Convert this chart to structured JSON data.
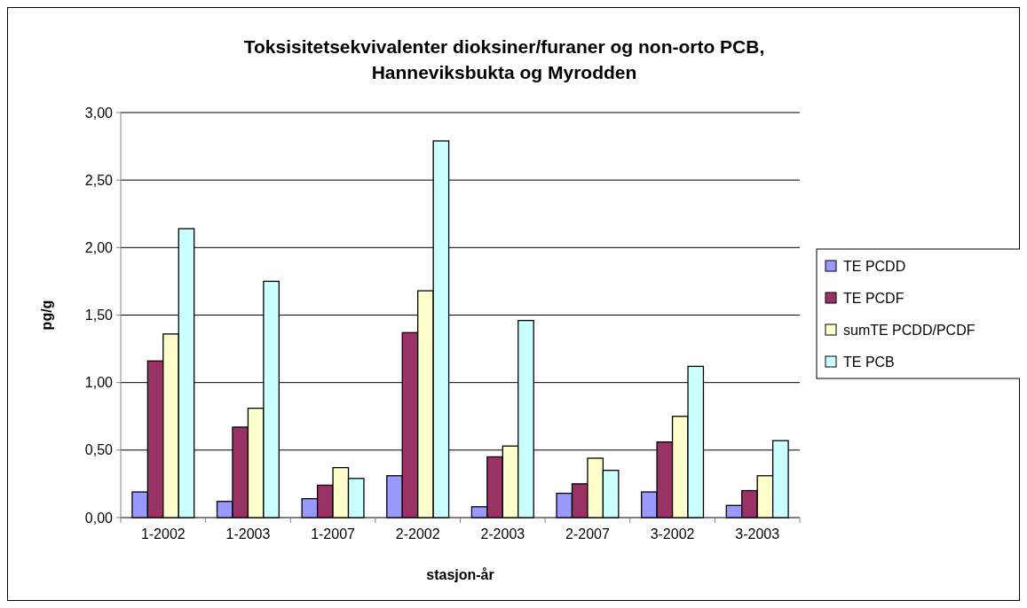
{
  "chart_data": {
    "type": "bar",
    "title": "Toksisitetsekvivalenter dioksiner/furaner og non-orto PCB, Hanneviksbukta og Myrodden",
    "xlabel": "stasjon-år",
    "ylabel": "pg/g",
    "categories": [
      "1-2002",
      "1-2003",
      "1-2007",
      "2-2002",
      "2-2003",
      "2-2007",
      "3-2002",
      "3-2003"
    ],
    "series": [
      {
        "name": "TE PCDD",
        "color": "#9999ff",
        "values": [
          0.19,
          0.12,
          0.14,
          0.31,
          0.08,
          0.18,
          0.19,
          0.09
        ]
      },
      {
        "name": "TE PCDF",
        "color": "#993366",
        "values": [
          1.16,
          0.67,
          0.24,
          1.37,
          0.45,
          0.25,
          0.56,
          0.2
        ]
      },
      {
        "name": "sumTE PCDD/PCDF",
        "color": "#ffffcc",
        "values": [
          1.36,
          0.81,
          0.37,
          1.68,
          0.53,
          0.44,
          0.75,
          0.31
        ]
      },
      {
        "name": "TE PCB",
        "color": "#ccffff",
        "values": [
          2.14,
          1.75,
          0.29,
          2.79,
          1.46,
          0.35,
          1.12,
          0.57
        ]
      }
    ],
    "ylim": [
      0,
      3
    ],
    "yticks": [
      {
        "value": 0,
        "label": "0,00"
      },
      {
        "value": 0.5,
        "label": "0,50"
      },
      {
        "value": 1,
        "label": "1,00"
      },
      {
        "value": 1.5,
        "label": "1,50"
      },
      {
        "value": 2,
        "label": "2,00"
      },
      {
        "value": 2.5,
        "label": "2,50"
      },
      {
        "value": 3,
        "label": "3,00"
      }
    ],
    "grid": "y",
    "legend": "right"
  }
}
